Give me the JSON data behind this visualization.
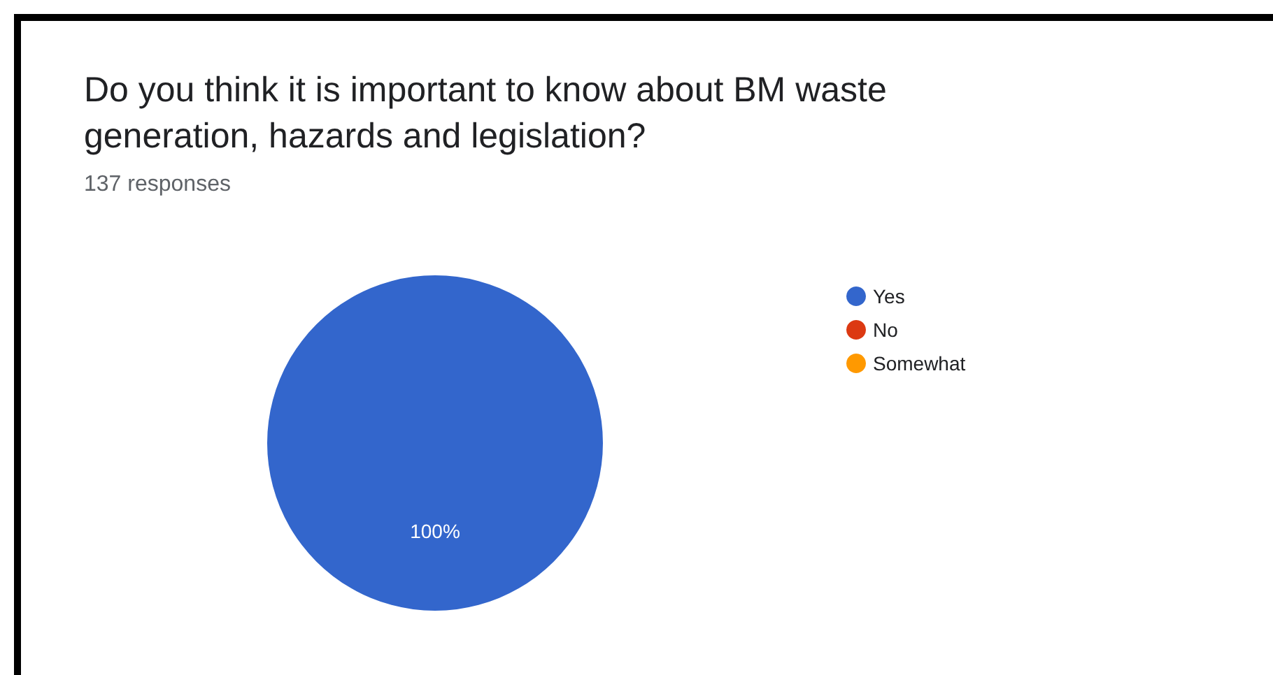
{
  "chart_data": {
    "type": "pie",
    "title": "Do you think it is important to know about BM waste generation, hazards and legislation?",
    "subtitle": "137 responses",
    "categories": [
      "Yes",
      "No",
      "Somewhat"
    ],
    "values": [
      100,
      0,
      0
    ],
    "colors": [
      "#3366cc",
      "#dc3912",
      "#ff9900"
    ],
    "value_labels": [
      "100%",
      null,
      null
    ],
    "legend": "right"
  }
}
